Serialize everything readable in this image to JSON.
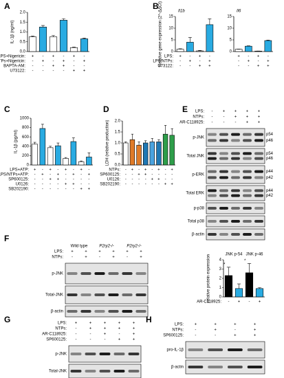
{
  "chart_data": [
    {
      "type": "bar",
      "panel": "A",
      "ylabel": "IL-1β (ng/ml)",
      "values": [
        0.75,
        1.25,
        0.75,
        1.6,
        0.2,
        0.65
      ],
      "errors": [
        0.04,
        0.08,
        0.07,
        0.08,
        0.03,
        0.04
      ],
      "colors": [
        "#ffffff",
        "#29abe2",
        "#ffffff",
        "#29abe2",
        "#ffffff",
        "#29abe2"
      ],
      "ylim": [
        0,
        2
      ],
      "yticks": [
        {
          "value": 0,
          "label": "0.0"
        },
        0.5,
        {
          "value": 1,
          "label": "1.0"
        },
        1.5,
        {
          "value": 2,
          "label": "2.0"
        }
      ],
      "conditions": [
        {
          "label": "LPS+Nigericin:",
          "signs": [
            "+",
            "-",
            "+",
            "-",
            "+",
            "-"
          ]
        },
        {
          "label": "LPS/NTPs+Nigericin:",
          "signs": [
            "-",
            "+",
            "-",
            "+",
            "-",
            "+"
          ]
        },
        {
          "label": "BAPTA-AM:",
          "signs": [
            "-",
            "-",
            "+",
            "+",
            "-",
            "-"
          ]
        },
        {
          "label": "U73122:",
          "signs": [
            "-",
            "-",
            "-",
            "-",
            "+",
            "+"
          ]
        }
      ]
    },
    {
      "type": "bar",
      "panel": "B",
      "title": "Il1b",
      "ylabel": "Relative gene expression (2^-ΔΔCt)",
      "values": [
        1,
        4,
        0.3,
        11.5
      ],
      "errors": [
        0.2,
        2,
        0.2,
        2.5
      ],
      "colors": [
        "#ffffff",
        "#29abe2",
        "#ffffff",
        "#29abe2"
      ],
      "ylim": [
        0,
        15
      ],
      "yticks": [
        0,
        5,
        10,
        15
      ],
      "conditions": [
        {
          "label": "LPS:",
          "signs": [
            "+",
            "-",
            "+",
            "-"
          ]
        },
        {
          "label": "LPS/NTPs:",
          "signs": [
            "-",
            "+",
            "-",
            "+"
          ]
        },
        {
          "label": "U73122:",
          "signs": [
            "-",
            "-",
            "+",
            "+"
          ]
        }
      ]
    },
    {
      "type": "bar",
      "title": "Il6",
      "values": [
        1,
        2.3,
        0.2,
        4.7
      ],
      "errors": [
        0.1,
        0.15,
        0.05,
        0.2
      ],
      "colors": [
        "#ffffff",
        "#29abe2",
        "#ffffff",
        "#29abe2"
      ],
      "ylim": [
        0,
        15
      ],
      "yticks": [
        0,
        5,
        10,
        15
      ],
      "conditions": [
        {
          "signs": [
            "+",
            "-",
            "+",
            "-"
          ]
        },
        {
          "signs": [
            "-",
            "+",
            "-",
            "+"
          ]
        },
        {
          "signs": [
            "-",
            "-",
            "+",
            "+"
          ]
        }
      ]
    },
    {
      "type": "bar",
      "panel": "C",
      "ylabel": "IL-1β (pg/ml)",
      "values": [
        445,
        780,
        370,
        410,
        140,
        500,
        70,
        170
      ],
      "errors": [
        40,
        90,
        30,
        60,
        20,
        80,
        15,
        90
      ],
      "colors": [
        "#ffffff",
        "#29abe2",
        "#ffffff",
        "#29abe2",
        "#ffffff",
        "#29abe2",
        "#ffffff",
        "#29abe2"
      ],
      "ylim": [
        0,
        1000
      ],
      "yticks": [
        0,
        200,
        400,
        600,
        800,
        1000
      ],
      "conditions": [
        {
          "label": "LPS+ATP:",
          "signs": [
            "+",
            "-",
            "+",
            "-",
            "+",
            "-",
            "+",
            "-"
          ]
        },
        {
          "label": "LPS/NTPs+ATP:",
          "signs": [
            "-",
            "+",
            "-",
            "+",
            "-",
            "+",
            "-",
            "+"
          ]
        },
        {
          "label": "SP600125:",
          "signs": [
            "-",
            "-",
            "+",
            "+",
            "-",
            "-",
            "-",
            "-"
          ]
        },
        {
          "label": "U0126:",
          "signs": [
            "-",
            "-",
            "-",
            "-",
            "+",
            "+",
            "-",
            "-"
          ]
        },
        {
          "label": "SB202190:",
          "signs": [
            "-",
            "-",
            "-",
            "-",
            "-",
            "-",
            "+",
            "+"
          ]
        }
      ]
    },
    {
      "type": "bar",
      "panel": "D",
      "ylabel": "LDH (relative production)",
      "values": [
        1.0,
        1.15,
        0.9,
        1.0,
        1.05,
        1.05,
        1.4,
        1.35
      ],
      "errors": [
        0.05,
        0.25,
        0.15,
        0.1,
        0.15,
        0.1,
        0.4,
        0.3
      ],
      "colors": [
        "#ffffff",
        "#e07b28",
        "#e07b28",
        "#1f78b4",
        "#4aa3df",
        "#1f78b4",
        "#2e9e4a",
        "#2e9e4a"
      ],
      "ylim": [
        0,
        2
      ],
      "yticks": [
        {
          "value": 0,
          "label": "0.0"
        },
        0.5,
        {
          "value": 1,
          "label": "1.0"
        },
        1.5,
        {
          "value": 2,
          "label": "2.0"
        }
      ],
      "conditions": [
        {
          "label": "NTPs:",
          "signs": [
            "-",
            "+",
            "-",
            "+",
            "-",
            "+",
            "-",
            "+"
          ]
        },
        {
          "label": "SP600125:",
          "signs": [
            "-",
            "-",
            "+",
            "+",
            "-",
            "-",
            "-",
            "-"
          ]
        },
        {
          "label": "U0126:",
          "signs": [
            "-",
            "-",
            "-",
            "-",
            "+",
            "+",
            "-",
            "-"
          ]
        },
        {
          "label": "SB202190:",
          "signs": [
            "-",
            "-",
            "-",
            "-",
            "-",
            "-",
            "+",
            "+"
          ]
        }
      ]
    },
    {
      "type": "bar",
      "ylabel": "relative protein expression",
      "group_labels": [
        "JNK p-54",
        "JNK p-46"
      ],
      "values": [
        2.3,
        0.9,
        2.6,
        0.9
      ],
      "errors": [
        0.9,
        0.5,
        1.0,
        0.1
      ],
      "colors": [
        "#000000",
        "#29abe2",
        "#000000",
        "#29abe2"
      ],
      "markers": [
        "*",
        null,
        "*",
        null
      ],
      "ylim": [
        0,
        4
      ],
      "yticks": [
        0,
        1,
        2,
        3,
        4
      ],
      "conditions": [
        {
          "label": "AR-C118925:",
          "signs": [
            "-",
            "+",
            "-",
            "+"
          ]
        }
      ]
    }
  ],
  "blots": [
    {
      "panel": "E",
      "conditions": [
        {
          "label": "LPS:",
          "signs": [
            "-",
            "+",
            "+",
            "+",
            "+"
          ]
        },
        {
          "label": "NTPs:",
          "signs": [
            "-",
            "-",
            "+",
            "+",
            "+"
          ]
        },
        {
          "label": "AR-C118925:",
          "signs": [
            "-",
            "-",
            "-",
            "+",
            "+"
          ]
        }
      ],
      "bands": [
        {
          "label": "p-JNK",
          "markers": [
            "p54",
            "p46"
          ]
        },
        {
          "label": "Total JNK",
          "markers": [
            "p54",
            "p46"
          ]
        },
        {
          "label": "p-ERK",
          "markers": [
            "p44",
            "p42"
          ]
        },
        {
          "label": "Total ERK",
          "markers": [
            "p44",
            "p42"
          ]
        },
        {
          "label": "p-p38"
        },
        {
          "label": "Total p38"
        },
        {
          "label": "β-actin"
        }
      ]
    },
    {
      "panel": "F",
      "header": [
        "Wild type",
        "P2ry2-/-",
        "P2ry2-/-"
      ],
      "conditions": [
        {
          "label": "LPS:",
          "signs": [
            "+",
            "+",
            "+",
            "+",
            "+",
            "+"
          ]
        },
        {
          "label": "NTPs:",
          "signs": [
            "-",
            "+",
            "-",
            "+",
            "-",
            "+"
          ]
        }
      ],
      "bands": [
        {
          "label": "p-JNK"
        },
        {
          "label": "Total-JNK"
        },
        {
          "label": "β-actin"
        }
      ]
    },
    {
      "panel": "G",
      "conditions": [
        {
          "label": "LPS:",
          "signs": [
            "+",
            "+",
            "+",
            "+",
            "+"
          ]
        },
        {
          "label": "NTPs:",
          "signs": [
            "-",
            "+",
            "+",
            "+",
            "+"
          ]
        },
        {
          "label": "AR-C118925:",
          "signs": [
            "-",
            "-",
            "+",
            "-",
            "+"
          ]
        },
        {
          "label": "SP600125:",
          "signs": [
            "-",
            "-",
            "-",
            "+",
            "+"
          ]
        }
      ],
      "bands": [
        {
          "label": "p-JNK"
        },
        {
          "label": "Total-JNK"
        }
      ]
    },
    {
      "panel": "H",
      "conditions": [
        {
          "label": "LPS:",
          "signs": [
            "+",
            "+",
            "+",
            "+"
          ]
        },
        {
          "label": "NTPs:",
          "signs": [
            "-",
            "+",
            "-",
            "+"
          ]
        },
        {
          "label": "SP600125:",
          "signs": [
            "-",
            "-",
            "+",
            "+"
          ]
        }
      ],
      "bands": [
        {
          "label": "pro-IL-1β"
        },
        {
          "label": "β-actin"
        }
      ]
    }
  ]
}
